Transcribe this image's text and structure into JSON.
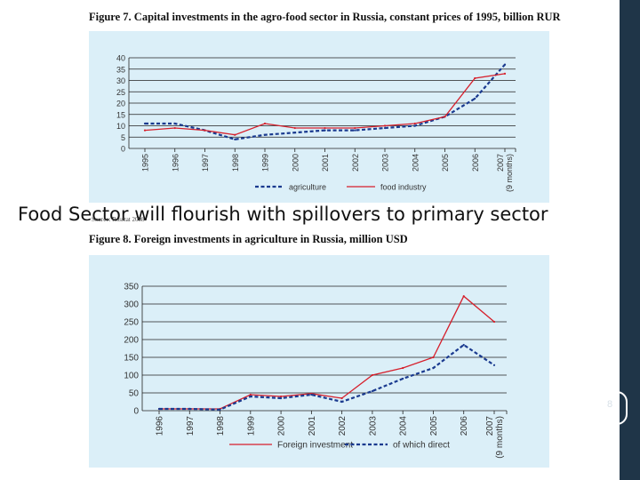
{
  "page": {
    "overlay_text": "Food Sector will flourish with spillovers to primary sector",
    "source_text": "Source: Rosstat 2008",
    "slide_number": "8"
  },
  "colors": {
    "panel_bg": "#dbeff8",
    "red": "#d61f2b",
    "blue": "#1a3a8f",
    "sidebar": "#1f3548"
  },
  "chart_data": [
    {
      "type": "line",
      "title": "Figure 7. Capital investments in the agro-food sector in Russia, constant prices of 1995, billion RUR",
      "categories": [
        "1995",
        "1996",
        "1997",
        "1998",
        "1999",
        "2000",
        "2001",
        "2002",
        "2003",
        "2004",
        "2005",
        "2006",
        "2007 (9 months)"
      ],
      "ylim": [
        0,
        40
      ],
      "yticks": [
        0,
        5,
        10,
        15,
        20,
        25,
        30,
        35,
        40
      ],
      "grid": true,
      "legend_position": "bottom",
      "series": [
        {
          "name": "agriculture",
          "style": "dashed",
          "color": "#1a3a8f",
          "values": [
            11,
            11,
            8,
            4,
            6,
            7,
            8,
            8,
            9,
            10,
            14,
            22,
            37
          ]
        },
        {
          "name": "food industry",
          "style": "solid",
          "color": "#d61f2b",
          "values": [
            8,
            9,
            8,
            6,
            11,
            9,
            9,
            9,
            10,
            11,
            14,
            31,
            33
          ]
        }
      ]
    },
    {
      "type": "line",
      "title": "Figure 8. Foreign investments in agriculture in Russia, million USD",
      "categories": [
        "1996",
        "1997",
        "1998",
        "1999",
        "2000",
        "2001",
        "2002",
        "2003",
        "2004",
        "2005",
        "2006",
        "2007 (9 months)"
      ],
      "ylim": [
        0,
        350
      ],
      "yticks": [
        0,
        50,
        100,
        150,
        200,
        250,
        300,
        350
      ],
      "grid": true,
      "legend_position": "bottom",
      "series": [
        {
          "name": "Foreign investment",
          "style": "solid",
          "color": "#d61f2b",
          "values": [
            5,
            5,
            5,
            45,
            40,
            48,
            35,
            100,
            120,
            150,
            322,
            250
          ]
        },
        {
          "name": "of which direct",
          "style": "dashed",
          "color": "#1a3a8f",
          "values": [
            5,
            5,
            3,
            40,
            35,
            45,
            25,
            55,
            90,
            120,
            185,
            128
          ]
        }
      ]
    }
  ]
}
